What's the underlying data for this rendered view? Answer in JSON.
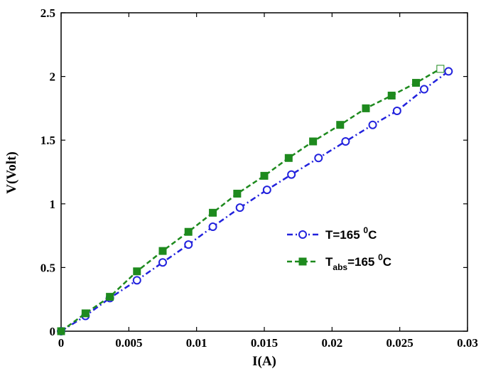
{
  "chart_data": {
    "type": "line",
    "xlabel": "I(A)",
    "ylabel": "V(Volt)",
    "xlim": [
      0,
      0.03
    ],
    "ylim": [
      0,
      2.5
    ],
    "x_ticks": [
      "0",
      "0.005",
      "0.01",
      "0.015",
      "0.02",
      "0.025",
      "0.03"
    ],
    "y_ticks": [
      "0",
      "0.5",
      "1",
      "1.5",
      "2",
      "2.5"
    ],
    "grid": false,
    "legend_position": "lower-right",
    "series": [
      {
        "name_parts": [
          "T=165 ",
          "0",
          "C"
        ],
        "color": "#2222dd",
        "line_style": "dash-dot",
        "marker": "open-circle",
        "x": [
          0,
          0.0018,
          0.0036,
          0.0056,
          0.0075,
          0.0094,
          0.0112,
          0.0132,
          0.0152,
          0.017,
          0.019,
          0.021,
          0.023,
          0.0248,
          0.0268,
          0.0286
        ],
        "y": [
          0,
          0.12,
          0.26,
          0.4,
          0.54,
          0.68,
          0.82,
          0.97,
          1.11,
          1.23,
          1.36,
          1.49,
          1.62,
          1.73,
          1.9,
          2.04
        ]
      },
      {
        "name_parts": [
          "T",
          "abs",
          "=165 ",
          "0",
          "C"
        ],
        "color": "#1e8a1e",
        "line_style": "dashed",
        "marker": "square",
        "x": [
          0,
          0.0018,
          0.0036,
          0.0056,
          0.0075,
          0.0094,
          0.0112,
          0.013,
          0.015,
          0.0168,
          0.0186,
          0.0206,
          0.0225,
          0.0244,
          0.0262,
          0.028
        ],
        "y": [
          0,
          0.14,
          0.27,
          0.47,
          0.63,
          0.78,
          0.93,
          1.08,
          1.22,
          1.36,
          1.49,
          1.62,
          1.75,
          1.85,
          1.95,
          2.06
        ]
      }
    ]
  }
}
